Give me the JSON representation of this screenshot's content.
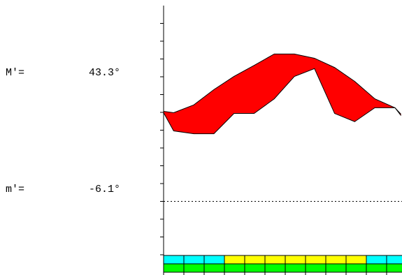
{
  "chart_data": {
    "type": "range",
    "max_label": "M′=",
    "max_value": "43.3°",
    "min_label": "m′=",
    "min_value": "-6.1°",
    "x": [
      0,
      0.5,
      1.5,
      2.5,
      3.5,
      4.5,
      5.5,
      6.5,
      7.5,
      8.5,
      9.5,
      10.5,
      11.5,
      11.8
    ],
    "series": [
      {
        "color": "#ff0000",
        "values": [
          25.3,
          24.9,
          27.1,
          31.4,
          35.1,
          38.2,
          41.4,
          41.4,
          40.2,
          37.6,
          33.7,
          28.8,
          26.3,
          24.5
        ]
      },
      {
        "color": "#ff0000",
        "values": [
          24.9,
          19.8,
          19.0,
          19.0,
          24.7,
          24.7,
          28.8,
          35.1,
          37.3,
          24.7,
          22.4,
          26.3,
          26.3,
          24.1
        ]
      }
    ],
    "xlim": [
      0,
      11.85
    ],
    "ylim": [
      -15,
      55
    ],
    "yticks": [
      -15,
      -10,
      -5,
      0,
      5,
      10,
      15,
      20,
      25,
      30,
      35,
      40,
      45,
      50
    ],
    "reference_line": 0,
    "strip_colors": [
      [
        "#00ffff",
        "#00ffff",
        "#00ffff",
        "#ffff00",
        "#ffff00",
        "#ffff00",
        "#ffff00",
        "#ffff00",
        "#ffff00",
        "#ffff00",
        "#00ffff",
        "#00ffff"
      ],
      [
        "#00ff00",
        "#00ff00",
        "#00ff00",
        "#00ff00",
        "#00ff00",
        "#00ff00",
        "#00ff00",
        "#00ff00",
        "#00ff00",
        "#00ff00",
        "#00ff00",
        "#00ff00"
      ]
    ]
  }
}
